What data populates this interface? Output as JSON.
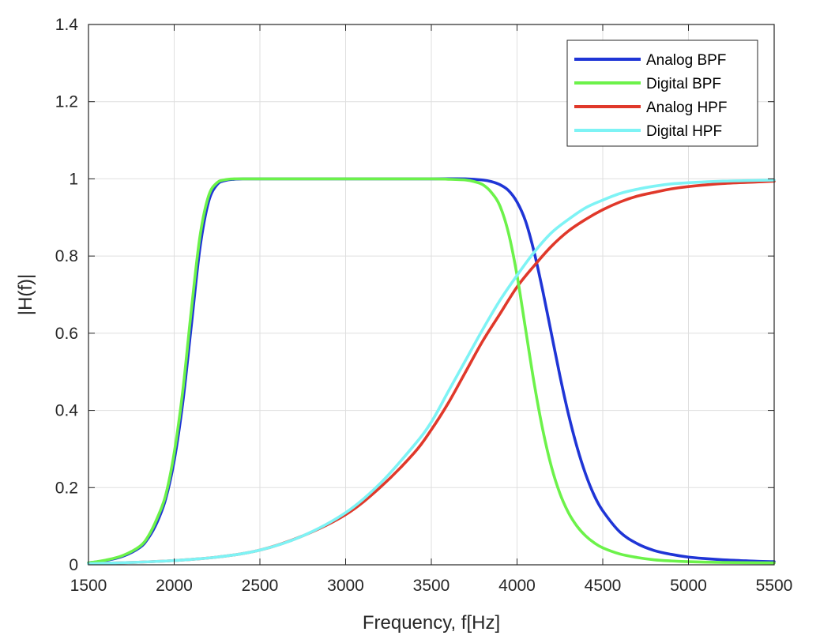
{
  "chart_data": {
    "type": "line",
    "xlabel": "Frequency, f[Hz]",
    "ylabel": "|H(f)|",
    "xlim": [
      1500,
      5500
    ],
    "ylim": [
      0,
      1.4
    ],
    "xticks": [
      "1500",
      "2000",
      "2500",
      "3000",
      "3500",
      "4000",
      "4500",
      "5000",
      "5500"
    ],
    "yticks": [
      "0",
      "0.2",
      "0.4",
      "0.6",
      "0.8",
      "1",
      "1.2",
      "1.4"
    ],
    "grid": true,
    "legend_position": "top-right",
    "series": [
      {
        "name": "Analog BPF",
        "color": "#1f35d6",
        "x": [
          1500,
          1600,
          1700,
          1800,
          1850,
          1900,
          1950,
          2000,
          2050,
          2100,
          2150,
          2200,
          2250,
          2300,
          2350,
          2400,
          2500,
          3000,
          3500,
          3700,
          3800,
          3850,
          3900,
          3950,
          4000,
          4050,
          4100,
          4150,
          4200,
          4250,
          4300,
          4350,
          4400,
          4450,
          4500,
          4600,
          4700,
          4800,
          4900,
          5000,
          5100,
          5200,
          5300,
          5400,
          5500
        ],
        "y": [
          0.005,
          0.011,
          0.022,
          0.045,
          0.07,
          0.11,
          0.17,
          0.27,
          0.42,
          0.62,
          0.82,
          0.94,
          0.985,
          0.996,
          0.999,
          1.0,
          1.0,
          1.0,
          1.0,
          1.0,
          0.997,
          0.993,
          0.985,
          0.97,
          0.94,
          0.89,
          0.81,
          0.71,
          0.6,
          0.49,
          0.39,
          0.305,
          0.235,
          0.18,
          0.14,
          0.085,
          0.055,
          0.037,
          0.027,
          0.02,
          0.016,
          0.013,
          0.011,
          0.009,
          0.008
        ]
      },
      {
        "name": "Digital BPF",
        "color": "#6cf24a",
        "x": [
          1500,
          1600,
          1700,
          1800,
          1850,
          1900,
          1950,
          2000,
          2050,
          2100,
          2150,
          2200,
          2250,
          2300,
          2350,
          2400,
          2500,
          3000,
          3500,
          3600,
          3700,
          3750,
          3800,
          3850,
          3900,
          3950,
          4000,
          4050,
          4100,
          4150,
          4200,
          4250,
          4300,
          4350,
          4400,
          4450,
          4500,
          4600,
          4700,
          4800,
          4900,
          5000,
          5200,
          5500
        ],
        "y": [
          0.005,
          0.012,
          0.024,
          0.048,
          0.075,
          0.12,
          0.18,
          0.29,
          0.45,
          0.66,
          0.85,
          0.955,
          0.99,
          0.998,
          1.0,
          1.0,
          1.0,
          1.0,
          1.0,
          0.999,
          0.997,
          0.993,
          0.985,
          0.965,
          0.93,
          0.86,
          0.75,
          0.61,
          0.47,
          0.35,
          0.255,
          0.185,
          0.135,
          0.1,
          0.075,
          0.057,
          0.044,
          0.028,
          0.019,
          0.013,
          0.01,
          0.008,
          0.006,
          0.005
        ]
      },
      {
        "name": "Analog HPF",
        "color": "#e0382a",
        "x": [
          1500,
          1750,
          2000,
          2250,
          2500,
          2750,
          3000,
          3200,
          3400,
          3500,
          3600,
          3700,
          3800,
          3900,
          4000,
          4100,
          4200,
          4300,
          4400,
          4500,
          4600,
          4700,
          4800,
          4900,
          5000,
          5200,
          5400,
          5500
        ],
        "y": [
          0.003,
          0.006,
          0.011,
          0.02,
          0.038,
          0.075,
          0.13,
          0.2,
          0.29,
          0.35,
          0.42,
          0.5,
          0.58,
          0.65,
          0.72,
          0.775,
          0.825,
          0.865,
          0.895,
          0.92,
          0.94,
          0.955,
          0.965,
          0.974,
          0.98,
          0.988,
          0.992,
          0.994
        ]
      },
      {
        "name": "Digital HPF",
        "color": "#7ef3f5",
        "x": [
          1500,
          1750,
          2000,
          2250,
          2500,
          2750,
          3000,
          3200,
          3400,
          3500,
          3600,
          3700,
          3800,
          3900,
          4000,
          4100,
          4200,
          4300,
          4400,
          4500,
          4600,
          4700,
          4800,
          4900,
          5000,
          5200,
          5400,
          5500
        ],
        "y": [
          0.003,
          0.006,
          0.011,
          0.02,
          0.038,
          0.075,
          0.135,
          0.21,
          0.31,
          0.37,
          0.45,
          0.53,
          0.61,
          0.685,
          0.75,
          0.81,
          0.86,
          0.895,
          0.925,
          0.945,
          0.962,
          0.973,
          0.981,
          0.987,
          0.99,
          0.994,
          0.996,
          0.997
        ]
      }
    ]
  }
}
